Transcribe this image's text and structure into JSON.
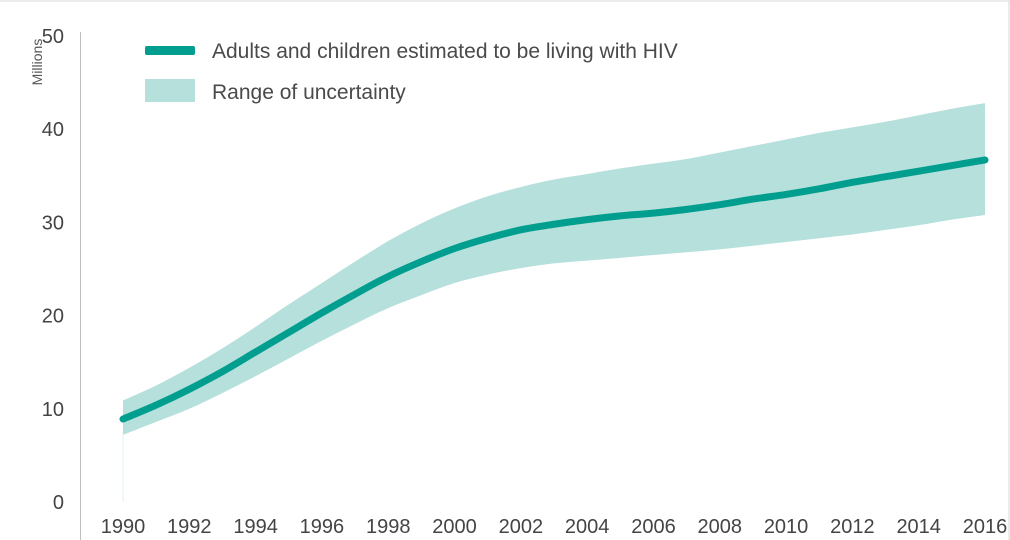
{
  "chart_data": {
    "type": "area",
    "title": "",
    "xlabel": "",
    "ylabel": "Millions",
    "xlim": [
      1990,
      2016
    ],
    "ylim": [
      0,
      50
    ],
    "x_ticks": [
      "1990",
      "1992",
      "1994",
      "1996",
      "1998",
      "2000",
      "2002",
      "2004",
      "2006",
      "2008",
      "2010",
      "2012",
      "2014",
      "2016"
    ],
    "y_ticks": [
      "0",
      "10",
      "20",
      "30",
      "40",
      "50"
    ],
    "grid": false,
    "legend_position": "top-left",
    "x": [
      1990,
      1991,
      1992,
      1993,
      1994,
      1995,
      1996,
      1997,
      1998,
      1999,
      2000,
      2001,
      2002,
      2003,
      2004,
      2005,
      2006,
      2007,
      2008,
      2009,
      2010,
      2011,
      2012,
      2013,
      2014,
      2015,
      2016
    ],
    "series": [
      {
        "name": "Adults and children estimated to be living with HIV",
        "kind": "line",
        "color": "#009e8f",
        "values": [
          8.9,
          10.4,
          12.1,
          14.0,
          16.1,
          18.2,
          20.3,
          22.3,
          24.2,
          25.8,
          27.2,
          28.3,
          29.2,
          29.8,
          30.3,
          30.7,
          31.0,
          31.4,
          31.9,
          32.5,
          33.0,
          33.6,
          34.3,
          34.9,
          35.5,
          36.1,
          36.7
        ]
      },
      {
        "name": "Range of uncertainty",
        "kind": "band",
        "color": "#b6e0dc",
        "lower": [
          7.2,
          8.6,
          10.0,
          11.7,
          13.5,
          15.4,
          17.3,
          19.1,
          20.8,
          22.2,
          23.5,
          24.4,
          25.1,
          25.6,
          25.9,
          26.2,
          26.5,
          26.8,
          27.1,
          27.5,
          27.9,
          28.3,
          28.7,
          29.2,
          29.7,
          30.3,
          30.8
        ],
        "upper": [
          10.9,
          12.5,
          14.4,
          16.5,
          18.8,
          21.2,
          23.5,
          25.8,
          28.0,
          29.9,
          31.5,
          32.8,
          33.8,
          34.6,
          35.2,
          35.8,
          36.3,
          36.8,
          37.5,
          38.2,
          38.9,
          39.6,
          40.2,
          40.8,
          41.5,
          42.2,
          42.8
        ]
      }
    ]
  }
}
